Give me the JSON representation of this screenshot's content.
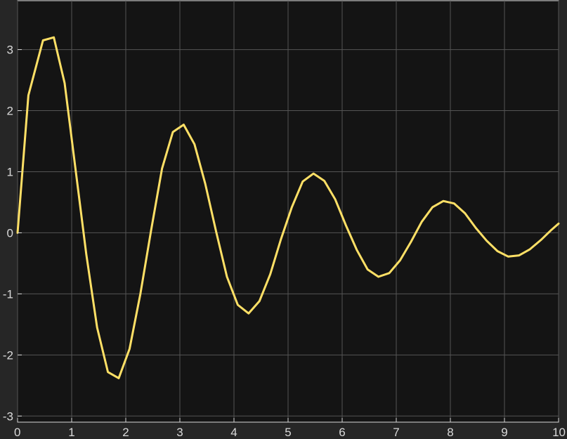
{
  "chart_data": {
    "type": "line",
    "title": "",
    "xlabel": "",
    "ylabel": "",
    "xlim": [
      0,
      10
    ],
    "ylim": [
      -3.1,
      3.8
    ],
    "xticks": [
      "0",
      "1",
      "2",
      "3",
      "4",
      "5",
      "6",
      "7",
      "8",
      "9",
      "10"
    ],
    "yticks": [
      "-3",
      "-2",
      "-1",
      "0",
      "1",
      "2",
      "3"
    ],
    "grid": true,
    "legend": "none",
    "series": [
      {
        "color": "#ffe066",
        "x": [
          0,
          0.2,
          0.47,
          0.67,
          0.87,
          1.07,
          1.27,
          1.47,
          1.67,
          1.87,
          2.07,
          2.27,
          2.47,
          2.67,
          2.87,
          3.07,
          3.27,
          3.47,
          3.67,
          3.87,
          4.07,
          4.27,
          4.47,
          4.67,
          4.87,
          5.07,
          5.27,
          5.47,
          5.67,
          5.87,
          6.07,
          6.27,
          6.47,
          6.67,
          6.87,
          7.07,
          7.27,
          7.47,
          7.67,
          7.87,
          8.07,
          8.27,
          8.47,
          8.67,
          8.87,
          9.07,
          9.27,
          9.47,
          9.67,
          9.87,
          10.0
        ],
        "y": [
          0,
          2.25,
          3.15,
          3.2,
          2.45,
          1.05,
          -0.35,
          -1.55,
          -2.28,
          -2.38,
          -1.9,
          -1.0,
          0.05,
          1.05,
          1.65,
          1.77,
          1.45,
          0.8,
          0.02,
          -0.72,
          -1.18,
          -1.32,
          -1.12,
          -0.68,
          -0.1,
          0.42,
          0.84,
          0.97,
          0.85,
          0.55,
          0.12,
          -0.28,
          -0.6,
          -0.72,
          -0.66,
          -0.45,
          -0.15,
          0.18,
          0.42,
          0.52,
          0.48,
          0.32,
          0.08,
          -0.13,
          -0.3,
          -0.39,
          -0.37,
          -0.27,
          -0.12,
          0.05,
          0.15
        ]
      }
    ]
  }
}
